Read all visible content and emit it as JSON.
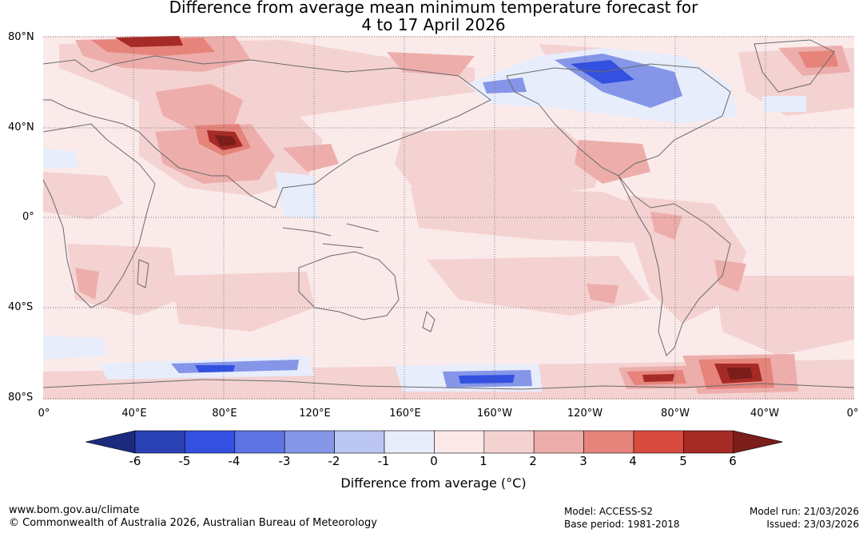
{
  "title": {
    "line1": "Difference from average mean minimum temperature forecast for",
    "line2": "4 to 17 April 2026"
  },
  "map": {
    "lat_labels": [
      "80°N",
      "40°N",
      "0°",
      "40°S",
      "80°S"
    ],
    "lon_labels": [
      "0°",
      "40°E",
      "80°E",
      "120°E",
      "160°E",
      "160°W",
      "120°W",
      "80°W",
      "40°W",
      "0°"
    ],
    "colors": {
      "grid": "#555555",
      "coast": "#6a6a6a",
      "ocean_base": "#fbeaea"
    }
  },
  "colorbar": {
    "ticks": [
      "-6",
      "-5",
      "-4",
      "-3",
      "-2",
      "-1",
      "0",
      "1",
      "2",
      "3",
      "4",
      "5",
      "6"
    ],
    "colors": [
      "#1c2a7e",
      "#2a41b6",
      "#3450e0",
      "#5d74e2",
      "#8596e8",
      "#bcc6f2",
      "#e8edfb",
      "#fbe9e9",
      "#f4d2d2",
      "#edaeab",
      "#e6847c",
      "#d84a3e",
      "#a62a25",
      "#7a1d1b"
    ],
    "label": "Difference from average (°C)"
  },
  "footer": {
    "website": "www.bom.gov.au/climate",
    "copyright": "© Commonwealth of Australia 2026, Australian Bureau of Meteorology",
    "model": "Model: ACCESS-S2",
    "base_period": "Base period: 1981-2018",
    "model_run": "Model run: 21/03/2026",
    "issued": "Issued: 23/03/2026"
  }
}
